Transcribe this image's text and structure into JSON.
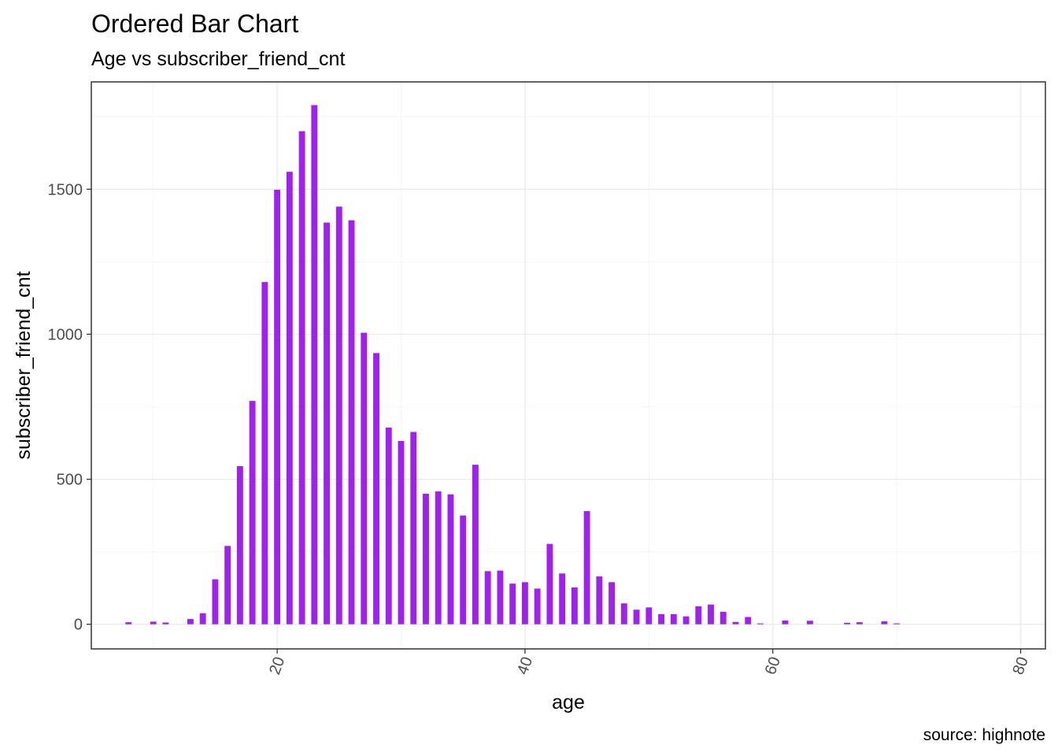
{
  "chart_data": {
    "type": "bar",
    "title": "Ordered Bar Chart",
    "subtitle": "Age vs subscriber_friend_cnt",
    "xlabel": "age",
    "ylabel": "subscriber_friend_cnt",
    "caption": "source: highnote",
    "bar_color": "#a020f0",
    "grid": true,
    "xlim": [
      5,
      82
    ],
    "ylim": [
      -85,
      1870
    ],
    "x_ticks": [
      20,
      40,
      60,
      80
    ],
    "x_tick_labels": [
      "20",
      "40",
      "60",
      "80"
    ],
    "x_tick_rotation": -70,
    "y_ticks": [
      0,
      500,
      1000,
      1500
    ],
    "y_tick_labels": [
      "0",
      "500",
      "1000",
      "1500"
    ],
    "x": [
      8,
      10,
      11,
      13,
      14,
      15,
      16,
      17,
      18,
      19,
      20,
      21,
      22,
      23,
      24,
      25,
      26,
      27,
      28,
      29,
      30,
      31,
      32,
      33,
      34,
      35,
      36,
      37,
      38,
      39,
      40,
      41,
      42,
      43,
      44,
      45,
      46,
      47,
      48,
      49,
      50,
      51,
      52,
      53,
      54,
      55,
      56,
      57,
      58,
      59,
      61,
      63,
      66,
      67,
      69,
      70
    ],
    "values": [
      7,
      9,
      6,
      18,
      38,
      155,
      270,
      545,
      770,
      1180,
      1498,
      1560,
      1700,
      1790,
      1385,
      1440,
      1393,
      1005,
      935,
      678,
      632,
      663,
      450,
      458,
      448,
      375,
      550,
      183,
      185,
      140,
      145,
      123,
      277,
      175,
      127,
      390,
      165,
      145,
      72,
      50,
      58,
      35,
      35,
      27,
      62,
      68,
      43,
      8,
      25,
      3,
      13,
      12,
      5,
      7,
      10,
      3
    ]
  }
}
